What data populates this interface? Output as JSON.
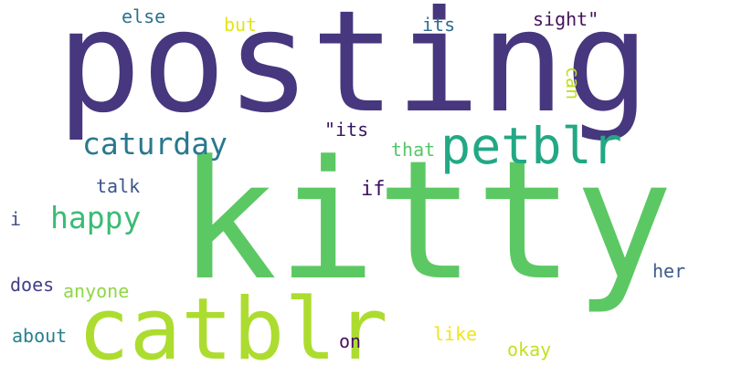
{
  "cloud": {
    "words": [
      {
        "text": "posting",
        "color": "#46377e"
      },
      {
        "text": "kitty",
        "color": "#5cc863"
      },
      {
        "text": "catblr",
        "color": "#addc30"
      },
      {
        "text": "petblr",
        "color": "#22a884"
      },
      {
        "text": "caturday",
        "color": "#2a788e"
      },
      {
        "text": "happy",
        "color": "#3bbb75"
      },
      {
        "text": "else",
        "color": "#2c728e"
      },
      {
        "text": "but",
        "color": "#e3e418"
      },
      {
        "text": "its",
        "color": "#306a8e"
      },
      {
        "text": "sight\"",
        "color": "#45125d"
      },
      {
        "text": "can",
        "color": "#c2df23"
      },
      {
        "text": "\"its",
        "color": "#3a175f"
      },
      {
        "text": "that",
        "color": "#55c667"
      },
      {
        "text": "talk",
        "color": "#3a548c"
      },
      {
        "text": "if",
        "color": "#3b0f60"
      },
      {
        "text": "i",
        "color": "#3e4c8a"
      },
      {
        "text": "her",
        "color": "#3d5b8c"
      },
      {
        "text": "does",
        "color": "#433e85"
      },
      {
        "text": "anyone",
        "color": "#8fd744"
      },
      {
        "text": "about",
        "color": "#26818e"
      },
      {
        "text": "on",
        "color": "#471063"
      },
      {
        "text": "like",
        "color": "#f0e51d"
      },
      {
        "text": "okay",
        "color": "#c5df21"
      }
    ]
  }
}
